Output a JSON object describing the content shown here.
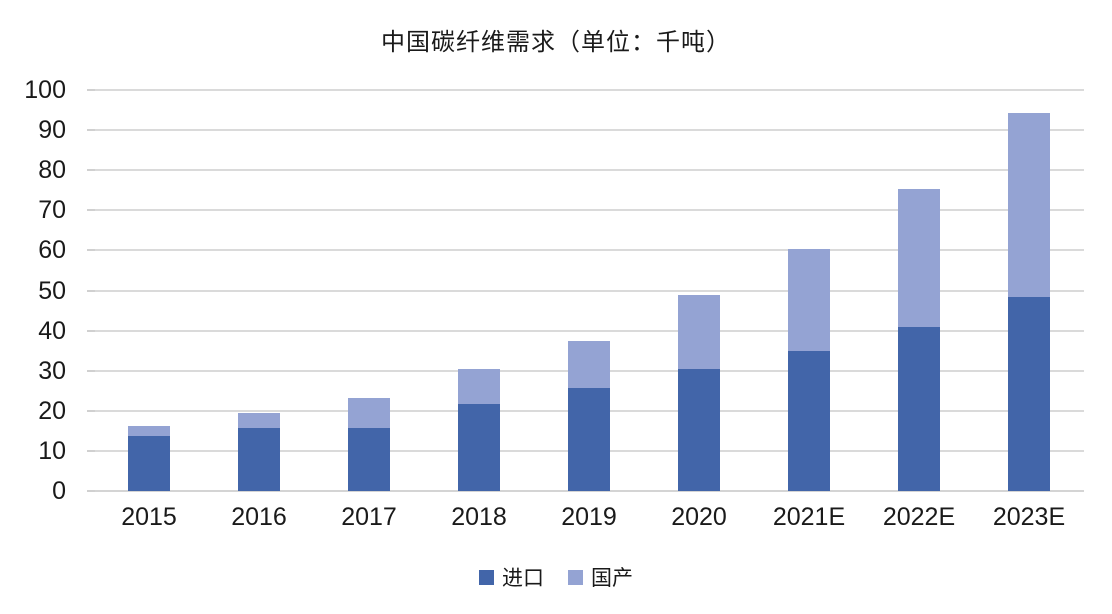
{
  "chart_data": {
    "type": "bar",
    "stacked": true,
    "title": "中国碳纤维需求（单位：千吨）",
    "categories": [
      "2015",
      "2016",
      "2017",
      "2018",
      "2019",
      "2020",
      "2021E",
      "2022E",
      "2023E"
    ],
    "series": [
      {
        "name": "进口",
        "color": "#4265A9",
        "values": [
          13.8,
          15.8,
          15.8,
          21.8,
          25.8,
          30.4,
          35.0,
          41.0,
          48.5
        ]
      },
      {
        "name": "国产",
        "color": "#94A3D3",
        "values": [
          2.5,
          3.7,
          7.4,
          8.7,
          11.7,
          18.5,
          25.3,
          34.4,
          45.8
        ]
      }
    ],
    "totals": [
      16.3,
      19.5,
      23.2,
      30.5,
      37.5,
      48.9,
      60.3,
      75.4,
      94.3
    ],
    "ylim": [
      0,
      100
    ],
    "ytick_step": 10,
    "yticks": [
      0,
      10,
      20,
      30,
      40,
      50,
      60,
      70,
      80,
      90,
      100
    ],
    "xlabel": "",
    "ylabel": "",
    "grid": true,
    "legend_position": "bottom"
  },
  "colors": {
    "grid": "#DADADA",
    "axis_text": "#1A1A1A",
    "background": "#FFFFFF",
    "import_bar": "#4265A9",
    "domestic_bar": "#94A3D3"
  }
}
